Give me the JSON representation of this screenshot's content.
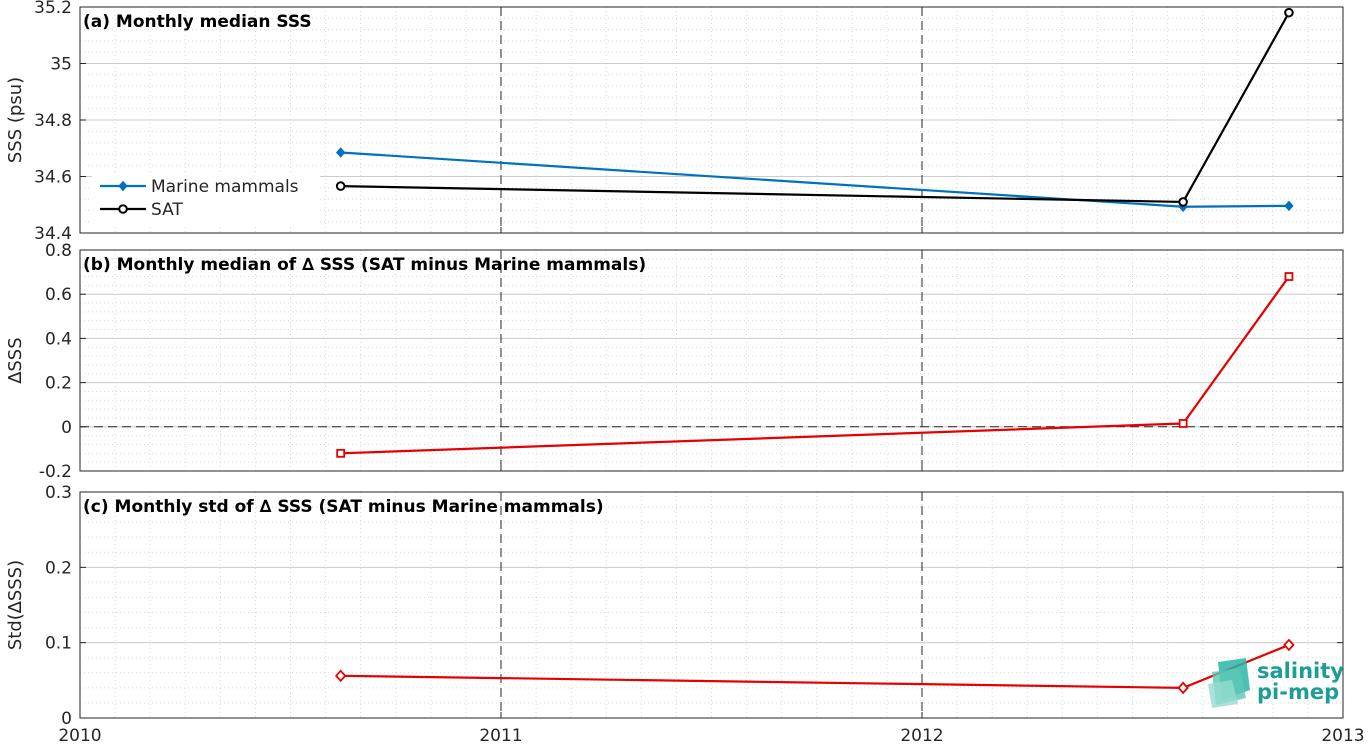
{
  "chart_data": [
    {
      "type": "line",
      "title": "(a) Monthly median SSS",
      "xlabel": "",
      "ylabel": "SSS (psu)",
      "xlim": [
        "2010",
        "2013"
      ],
      "ylim": [
        34.4,
        35.2
      ],
      "xticks": [
        "2010",
        "2011",
        "2012",
        "2013"
      ],
      "yticks": [
        "34.4",
        "34.6",
        "34.8",
        "35",
        "35.2"
      ],
      "grid": true,
      "legend_position": "left",
      "series": [
        {
          "name": "Marine mammals",
          "color": "#0072bd",
          "marker": "filled-diamond",
          "x": [
            "2010-08-15",
            "2012-08-15",
            "2012-11-15"
          ],
          "y": [
            34.685,
            34.493,
            34.496
          ]
        },
        {
          "name": "SAT",
          "color": "#000000",
          "marker": "open-circle",
          "x": [
            "2010-08-15",
            "2012-08-15",
            "2012-11-15"
          ],
          "y": [
            34.566,
            34.51,
            35.18
          ]
        }
      ]
    },
    {
      "type": "line",
      "title": "(b) Monthly median of ∆ SSS (SAT minus Marine mammals)",
      "xlabel": "",
      "ylabel": "∆SSS",
      "xlim": [
        "2010",
        "2013"
      ],
      "ylim": [
        -0.2,
        0.8
      ],
      "yticks": [
        "-0.2",
        "0",
        "0.2",
        "0.4",
        "0.6",
        "0.8"
      ],
      "grid": true,
      "zero_line": true,
      "series": [
        {
          "color": "#e60000",
          "marker": "open-square",
          "x": [
            "2010-08-15",
            "2012-08-15",
            "2012-11-15"
          ],
          "y": [
            -0.12,
            0.015,
            0.68
          ]
        }
      ]
    },
    {
      "type": "line",
      "title": "(c) Monthly std of ∆ SSS (SAT minus Marine mammals)",
      "xlabel": "",
      "ylabel": "Std(∆SSS)",
      "xlim": [
        "2010",
        "2013"
      ],
      "ylim": [
        0,
        0.3
      ],
      "yticks": [
        "0",
        "0.1",
        "0.2",
        "0.3"
      ],
      "grid": true,
      "series": [
        {
          "color": "#e60000",
          "marker": "open-diamond",
          "x": [
            "2010-08-15",
            "2012-08-15",
            "2012-11-15"
          ],
          "y": [
            0.056,
            0.04,
            0.097
          ]
        }
      ]
    }
  ],
  "logo": {
    "line1": "salinity",
    "line2": "pi-mep"
  }
}
